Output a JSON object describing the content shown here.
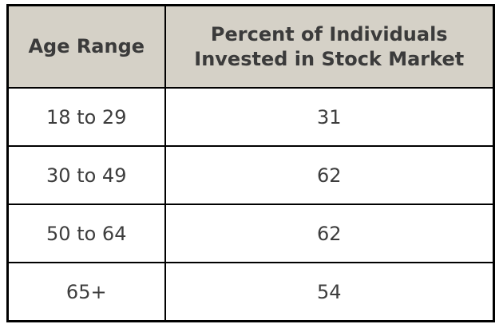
{
  "table": {
    "columns": [
      {
        "label": "Age Range"
      },
      {
        "label": "Percent of Individuals Invested in Stock Market"
      }
    ],
    "rows": [
      {
        "age_range": "18 to 29",
        "percent": "31"
      },
      {
        "age_range": "30 to 49",
        "percent": "62"
      },
      {
        "age_range": "50 to 64",
        "percent": "62"
      },
      {
        "age_range": "65+",
        "percent": "54"
      }
    ]
  },
  "colors": {
    "header_background": "#d5d1c7",
    "border": "#000000",
    "header_text": "#3b3b3b",
    "body_text": "#3d3d3d",
    "row_background": "#ffffff"
  },
  "chart_data": {
    "type": "table",
    "title": "",
    "columns": [
      "Age Range",
      "Percent of Individuals Invested in Stock Market"
    ],
    "categories": [
      "18 to 29",
      "30 to 49",
      "50 to 64",
      "65+"
    ],
    "values": [
      31,
      62,
      62,
      54
    ]
  }
}
